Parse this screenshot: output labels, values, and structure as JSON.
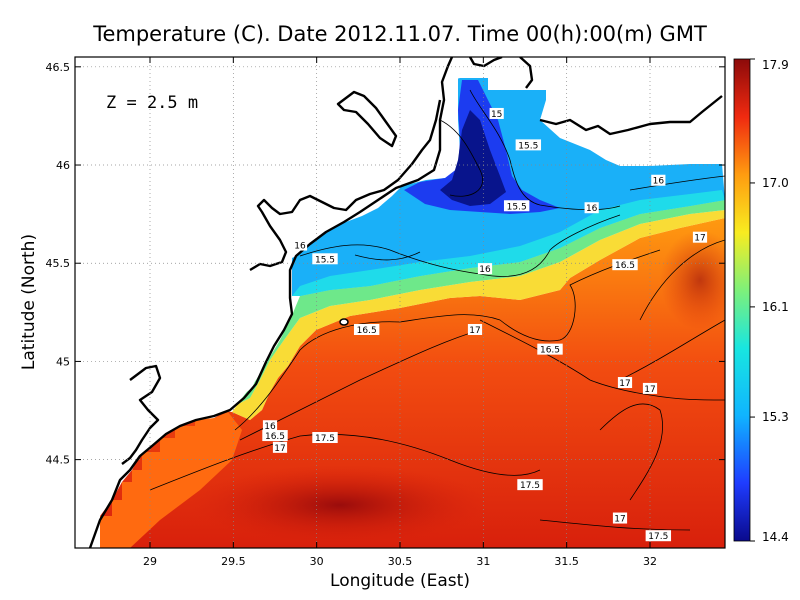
{
  "chart_data": {
    "type": "heatmap",
    "title": "Temperature (C). Date 2012.11.07. Time 00(h):00(m) GMT",
    "xlabel": "Longitude (East)",
    "ylabel": "Latitude (North)",
    "annotation": "Z = 2.5 m",
    "xlim": [
      28.55,
      32.45
    ],
    "ylim": [
      44.05,
      46.55
    ],
    "x_ticks": [
      29,
      29.5,
      30,
      30.5,
      31,
      31.5,
      32
    ],
    "x_tick_labels": [
      "29",
      "29.5",
      "30",
      "30.5",
      "31",
      "31.5",
      "32"
    ],
    "y_ticks": [
      44.5,
      45,
      45.5,
      46,
      46.5
    ],
    "y_tick_labels": [
      "44.5",
      "45",
      "45.5",
      "46",
      "46.5"
    ],
    "grid": true,
    "colorbar": {
      "min": 14.4,
      "max": 17.9,
      "tick_values": [
        17.9,
        17.0,
        16.1,
        15.3,
        14.4
      ],
      "tick_labels": [
        "17.9",
        "17.0",
        "16.1",
        "15.3",
        "14.4"
      ]
    },
    "contour_labels": [
      {
        "text": "15",
        "lon": 31.08,
        "lat": 46.26
      },
      {
        "text": "15.5",
        "lon": 31.27,
        "lat": 46.1
      },
      {
        "text": "15.5",
        "lon": 31.2,
        "lat": 45.79
      },
      {
        "text": "16",
        "lon": 32.05,
        "lat": 45.92
      },
      {
        "text": "16",
        "lon": 31.65,
        "lat": 45.78
      },
      {
        "text": "16",
        "lon": 29.9,
        "lat": 45.59
      },
      {
        "text": "15.5",
        "lon": 30.05,
        "lat": 45.52
      },
      {
        "text": "16",
        "lon": 31.01,
        "lat": 45.47
      },
      {
        "text": "16.5",
        "lon": 30.3,
        "lat": 45.16
      },
      {
        "text": "17",
        "lon": 30.95,
        "lat": 45.16
      },
      {
        "text": "16.5",
        "lon": 31.4,
        "lat": 45.06
      },
      {
        "text": "16.5",
        "lon": 31.85,
        "lat": 45.49
      },
      {
        "text": "17",
        "lon": 32.3,
        "lat": 45.63
      },
      {
        "text": "17",
        "lon": 31.85,
        "lat": 44.89
      },
      {
        "text": "17",
        "lon": 32.0,
        "lat": 44.86
      },
      {
        "text": "16",
        "lon": 29.72,
        "lat": 44.67
      },
      {
        "text": "16.5",
        "lon": 29.75,
        "lat": 44.62
      },
      {
        "text": "17",
        "lon": 29.78,
        "lat": 44.56
      },
      {
        "text": "17.5",
        "lon": 30.05,
        "lat": 44.61
      },
      {
        "text": "17.5",
        "lon": 31.28,
        "lat": 44.37
      },
      {
        "text": "17",
        "lon": 31.82,
        "lat": 44.2
      },
      {
        "text": "17.5",
        "lon": 32.05,
        "lat": 44.11
      }
    ]
  }
}
